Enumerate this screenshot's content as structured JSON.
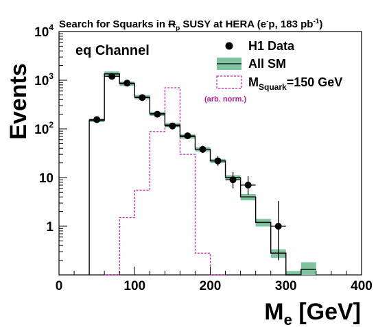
{
  "chart_data": {
    "type": "histogram",
    "title": {
      "prefix": "Search for Squarks in ",
      "rp": "R",
      "rp_sub": "p",
      "mid": " SUSY at HERA (e",
      "e_sup": "-",
      "mid2": "p, 183 pb",
      "lumi_sup": "-1",
      "end": ")"
    },
    "channel_label": "eq Channel",
    "xlabel_main": "M",
    "xlabel_sub": "e",
    "xlabel_unit": " [GeV]",
    "ylabel": "Events",
    "xlim": [
      0,
      400
    ],
    "ylim": [
      0.1,
      10000
    ],
    "y_scale": "log",
    "x_ticks": [
      "0",
      "100",
      "200",
      "300",
      "400"
    ],
    "x_tick_values": [
      0,
      100,
      200,
      300,
      400
    ],
    "y_ticks": [
      {
        "value": 1,
        "base": "1",
        "exp": ""
      },
      {
        "value": 10,
        "base": "10",
        "exp": ""
      },
      {
        "value": 100,
        "base": "10",
        "exp": "2"
      },
      {
        "value": 1000,
        "base": "10",
        "exp": "3"
      },
      {
        "value": 10000,
        "base": "10",
        "exp": "4"
      }
    ],
    "legend": {
      "position": "top-right",
      "data_label": "H1 Data",
      "sm_label": "All SM",
      "signal_main": "M",
      "signal_sub": "Squark",
      "signal_rest": "=150 GeV",
      "note": "(arb. norm.)"
    },
    "bin_edges": [
      40,
      60,
      80,
      100,
      120,
      140,
      160,
      180,
      200,
      220,
      240,
      260,
      280,
      300,
      320,
      340
    ],
    "sm_values": [
      150,
      1350,
      850,
      450,
      205,
      120,
      70,
      38,
      22,
      10,
      4,
      1.2,
      0.28,
      0.1,
      0.13
    ],
    "sm_band": [
      0.08,
      0.12,
      0.1,
      0.1,
      0.1,
      0.1,
      0.1,
      0.1,
      0.1,
      0.12,
      0.15,
      0.18,
      0.2,
      0.2,
      0.4
    ],
    "signal_bins": [
      {
        "x0": 60,
        "x1": 80,
        "y": 0.1
      },
      {
        "x0": 80,
        "x1": 100,
        "y": 1.5
      },
      {
        "x0": 100,
        "x1": 120,
        "y": 5.5
      },
      {
        "x0": 120,
        "x1": 140,
        "y": 88
      },
      {
        "x0": 140,
        "x1": 160,
        "y": 700
      },
      {
        "x0": 160,
        "x1": 180,
        "y": 30
      },
      {
        "x0": 180,
        "x1": 200,
        "y": 0.28
      },
      {
        "x0": 200,
        "x1": 220,
        "y": 0.1
      }
    ],
    "data_points": [
      {
        "x": 50,
        "y": 155,
        "lo": 12,
        "hi": 13
      },
      {
        "x": 70,
        "y": 1200,
        "lo": 35,
        "hi": 35
      },
      {
        "x": 90,
        "y": 870,
        "lo": 30,
        "hi": 30
      },
      {
        "x": 110,
        "y": 440,
        "lo": 21,
        "hi": 21
      },
      {
        "x": 130,
        "y": 200,
        "lo": 14,
        "hi": 14
      },
      {
        "x": 150,
        "y": 115,
        "lo": 11,
        "hi": 11
      },
      {
        "x": 170,
        "y": 72,
        "lo": 8,
        "hi": 9
      },
      {
        "x": 190,
        "y": 38,
        "lo": 6,
        "hi": 7
      },
      {
        "x": 210,
        "y": 22,
        "lo": 4.5,
        "hi": 5.5
      },
      {
        "x": 230,
        "y": 9,
        "lo": 3,
        "hi": 4
      },
      {
        "x": 250,
        "y": 7,
        "lo": 2.6,
        "hi": 3.6
      },
      {
        "x": 290,
        "y": 1,
        "lo": 0.8,
        "hi": 2.3
      }
    ],
    "colors": {
      "band": "#7fc3a0",
      "signal": "#c81fb0",
      "line": "#000000"
    }
  }
}
